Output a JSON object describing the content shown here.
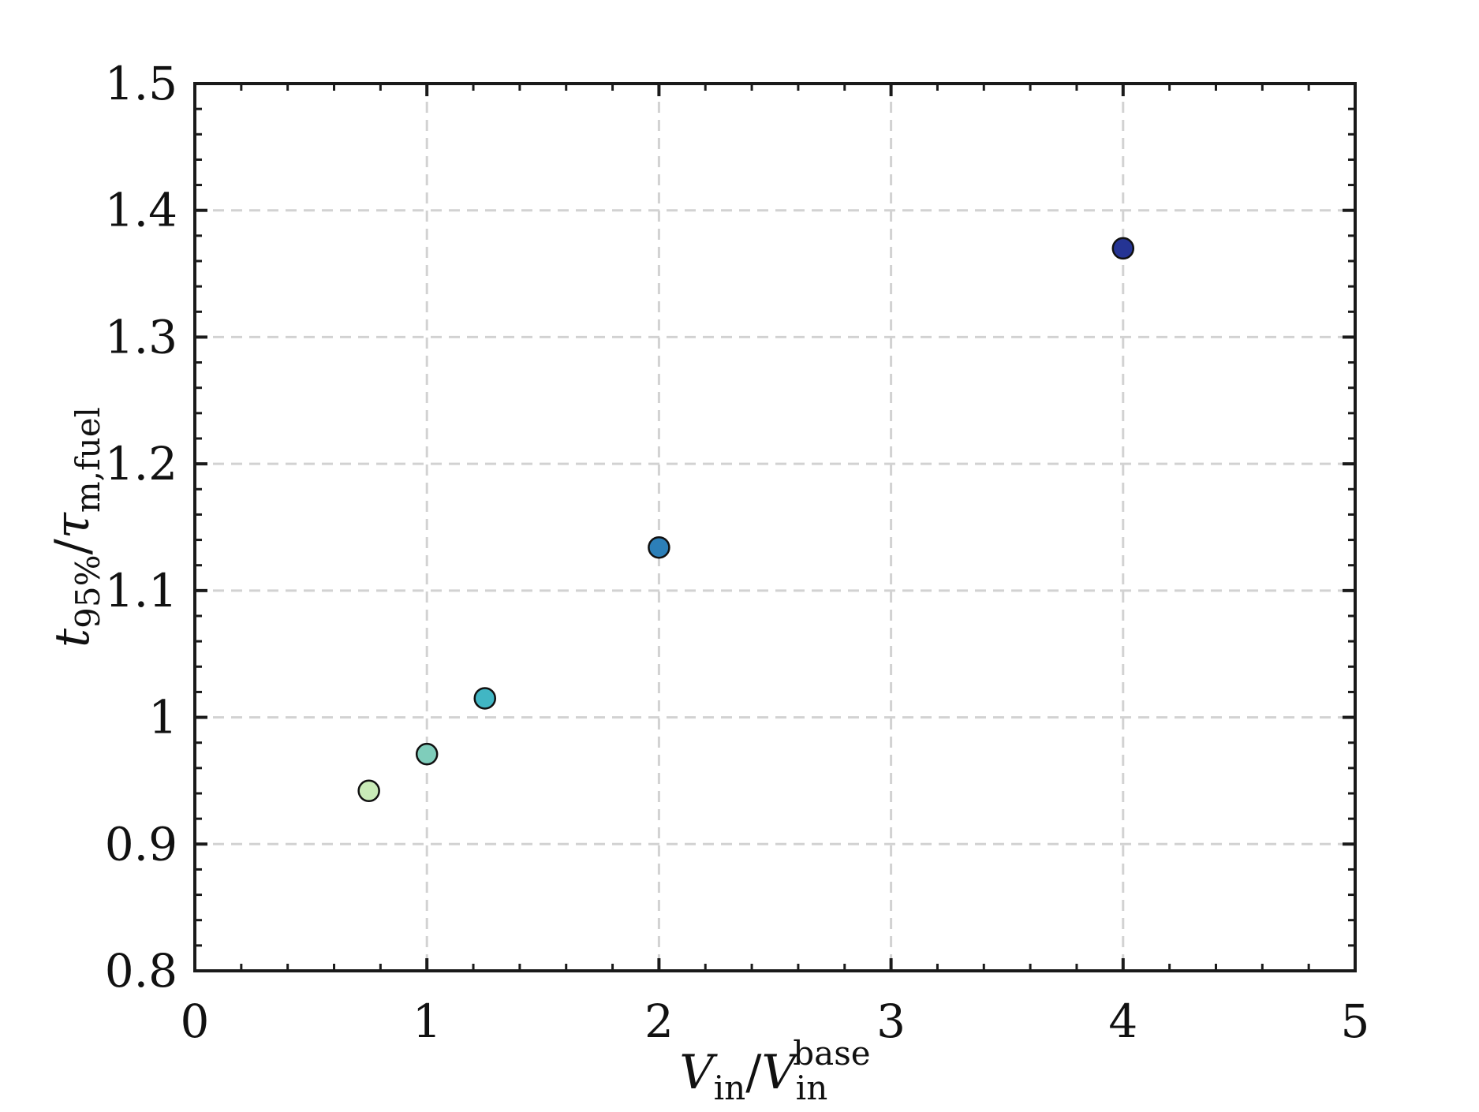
{
  "chart_data": {
    "type": "scatter",
    "xlabel": {
      "main": "V",
      "sub1": "in",
      "sep": "/",
      "main2": "V",
      "sub2": "in",
      "sup2": "base"
    },
    "ylabel": {
      "main": "t",
      "sub1": "95%",
      "sep": "/",
      "main2": "τ",
      "sub2": "m,fuel"
    },
    "xlim": [
      0,
      5
    ],
    "ylim": [
      0.8,
      1.5
    ],
    "xticks": [
      "0",
      "1",
      "2",
      "3",
      "4",
      "5"
    ],
    "yticks": [
      "0.8",
      "0.9",
      "1",
      "1.1",
      "1.2",
      "1.3",
      "1.4",
      "1.5"
    ],
    "grid": true,
    "points": [
      {
        "x": 0.75,
        "y": 0.942,
        "color": "#c9ebb8"
      },
      {
        "x": 1.0,
        "y": 0.971,
        "color": "#7fcdbb"
      },
      {
        "x": 1.25,
        "y": 1.015,
        "color": "#41b6c4"
      },
      {
        "x": 2.0,
        "y": 1.134,
        "color": "#2c7fb8"
      },
      {
        "x": 4.0,
        "y": 1.37,
        "color": "#253494"
      }
    ]
  }
}
